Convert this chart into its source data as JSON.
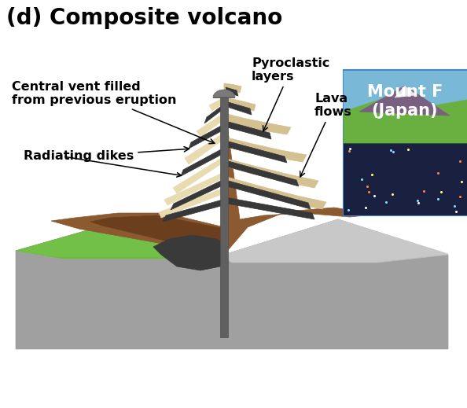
{
  "title": "(d) Composite volcano",
  "title_fontsize": 20,
  "title_fontweight": "bold",
  "bg_color": "#ffffff",
  "labels": {
    "central_vent": "Central vent filled\nfrom previous eruption",
    "pyroclastic": "Pyroclastic\nlayers",
    "lava_flows": "Lava\nflows",
    "radiating_dikes": "Radiating dikes",
    "mount_fuji_line1": "Mount F",
    "mount_fuji_line2": "(Japan)"
  },
  "label_fontsize": 11.5,
  "label_fontweight": "bold",
  "photo_box_color": "#6aade4",
  "photo_text_color": "#ffffff",
  "photo_text_fontsize": 15,
  "photo_text_fontweight": "bold",
  "colors": {
    "ground_side": "#a0a0a0",
    "ground_top_left": "#b8b8b8",
    "ground_top_right": "#c0c0c0",
    "green_surface": "#6db840",
    "volcano_brown": "#8b5a30",
    "volcano_brown_dark": "#6b3f1e",
    "cream_layer": "#d4c090",
    "cream_layer2": "#e8dbb0",
    "dark_dike": "#383838",
    "vent_color": "#606060",
    "magma_dark": "#3a3a3a",
    "cross_section_fill": "#c8b888"
  }
}
